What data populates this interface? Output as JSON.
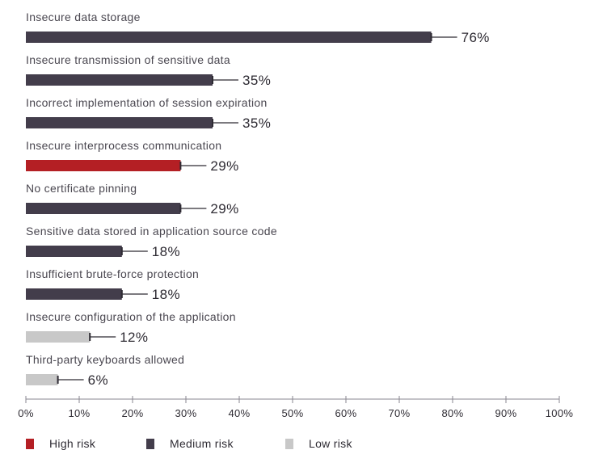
{
  "chart_data": {
    "type": "bar",
    "orientation": "horizontal",
    "categories": [
      "Insecure data storage",
      "Insecure transmission of sensitive data",
      "Incorrect implementation of session expiration",
      "Insecure interprocess communication",
      "No certificate pinning",
      "Sensitive data stored in application source code",
      "Insufficient brute-force protection",
      "Insecure configuration of the application",
      "Third-party keyboards allowed"
    ],
    "values": [
      76,
      35,
      35,
      29,
      29,
      18,
      18,
      12,
      6
    ],
    "value_labels": [
      "76%",
      "35%",
      "35%",
      "29%",
      "29%",
      "18%",
      "18%",
      "12%",
      "6%"
    ],
    "risk": [
      "medium",
      "medium",
      "medium",
      "high",
      "medium",
      "medium",
      "medium",
      "low",
      "low"
    ],
    "xlim": [
      0,
      100
    ],
    "x_ticks": [
      0,
      10,
      20,
      30,
      40,
      50,
      60,
      70,
      80,
      90,
      100
    ],
    "x_tick_labels": [
      "0%",
      "10%",
      "20%",
      "30%",
      "40%",
      "50%",
      "60%",
      "70%",
      "80%",
      "90%",
      "100%"
    ],
    "legend_position": "bottom-left",
    "legend": [
      {
        "key": "high",
        "label": "High risk",
        "color": "#b41f24"
      },
      {
        "key": "medium",
        "label": "Medium risk",
        "color": "#433d4b"
      },
      {
        "key": "low",
        "label": "Low risk",
        "color": "#c8c8c8"
      }
    ],
    "connector_color": "#2e2b33"
  }
}
